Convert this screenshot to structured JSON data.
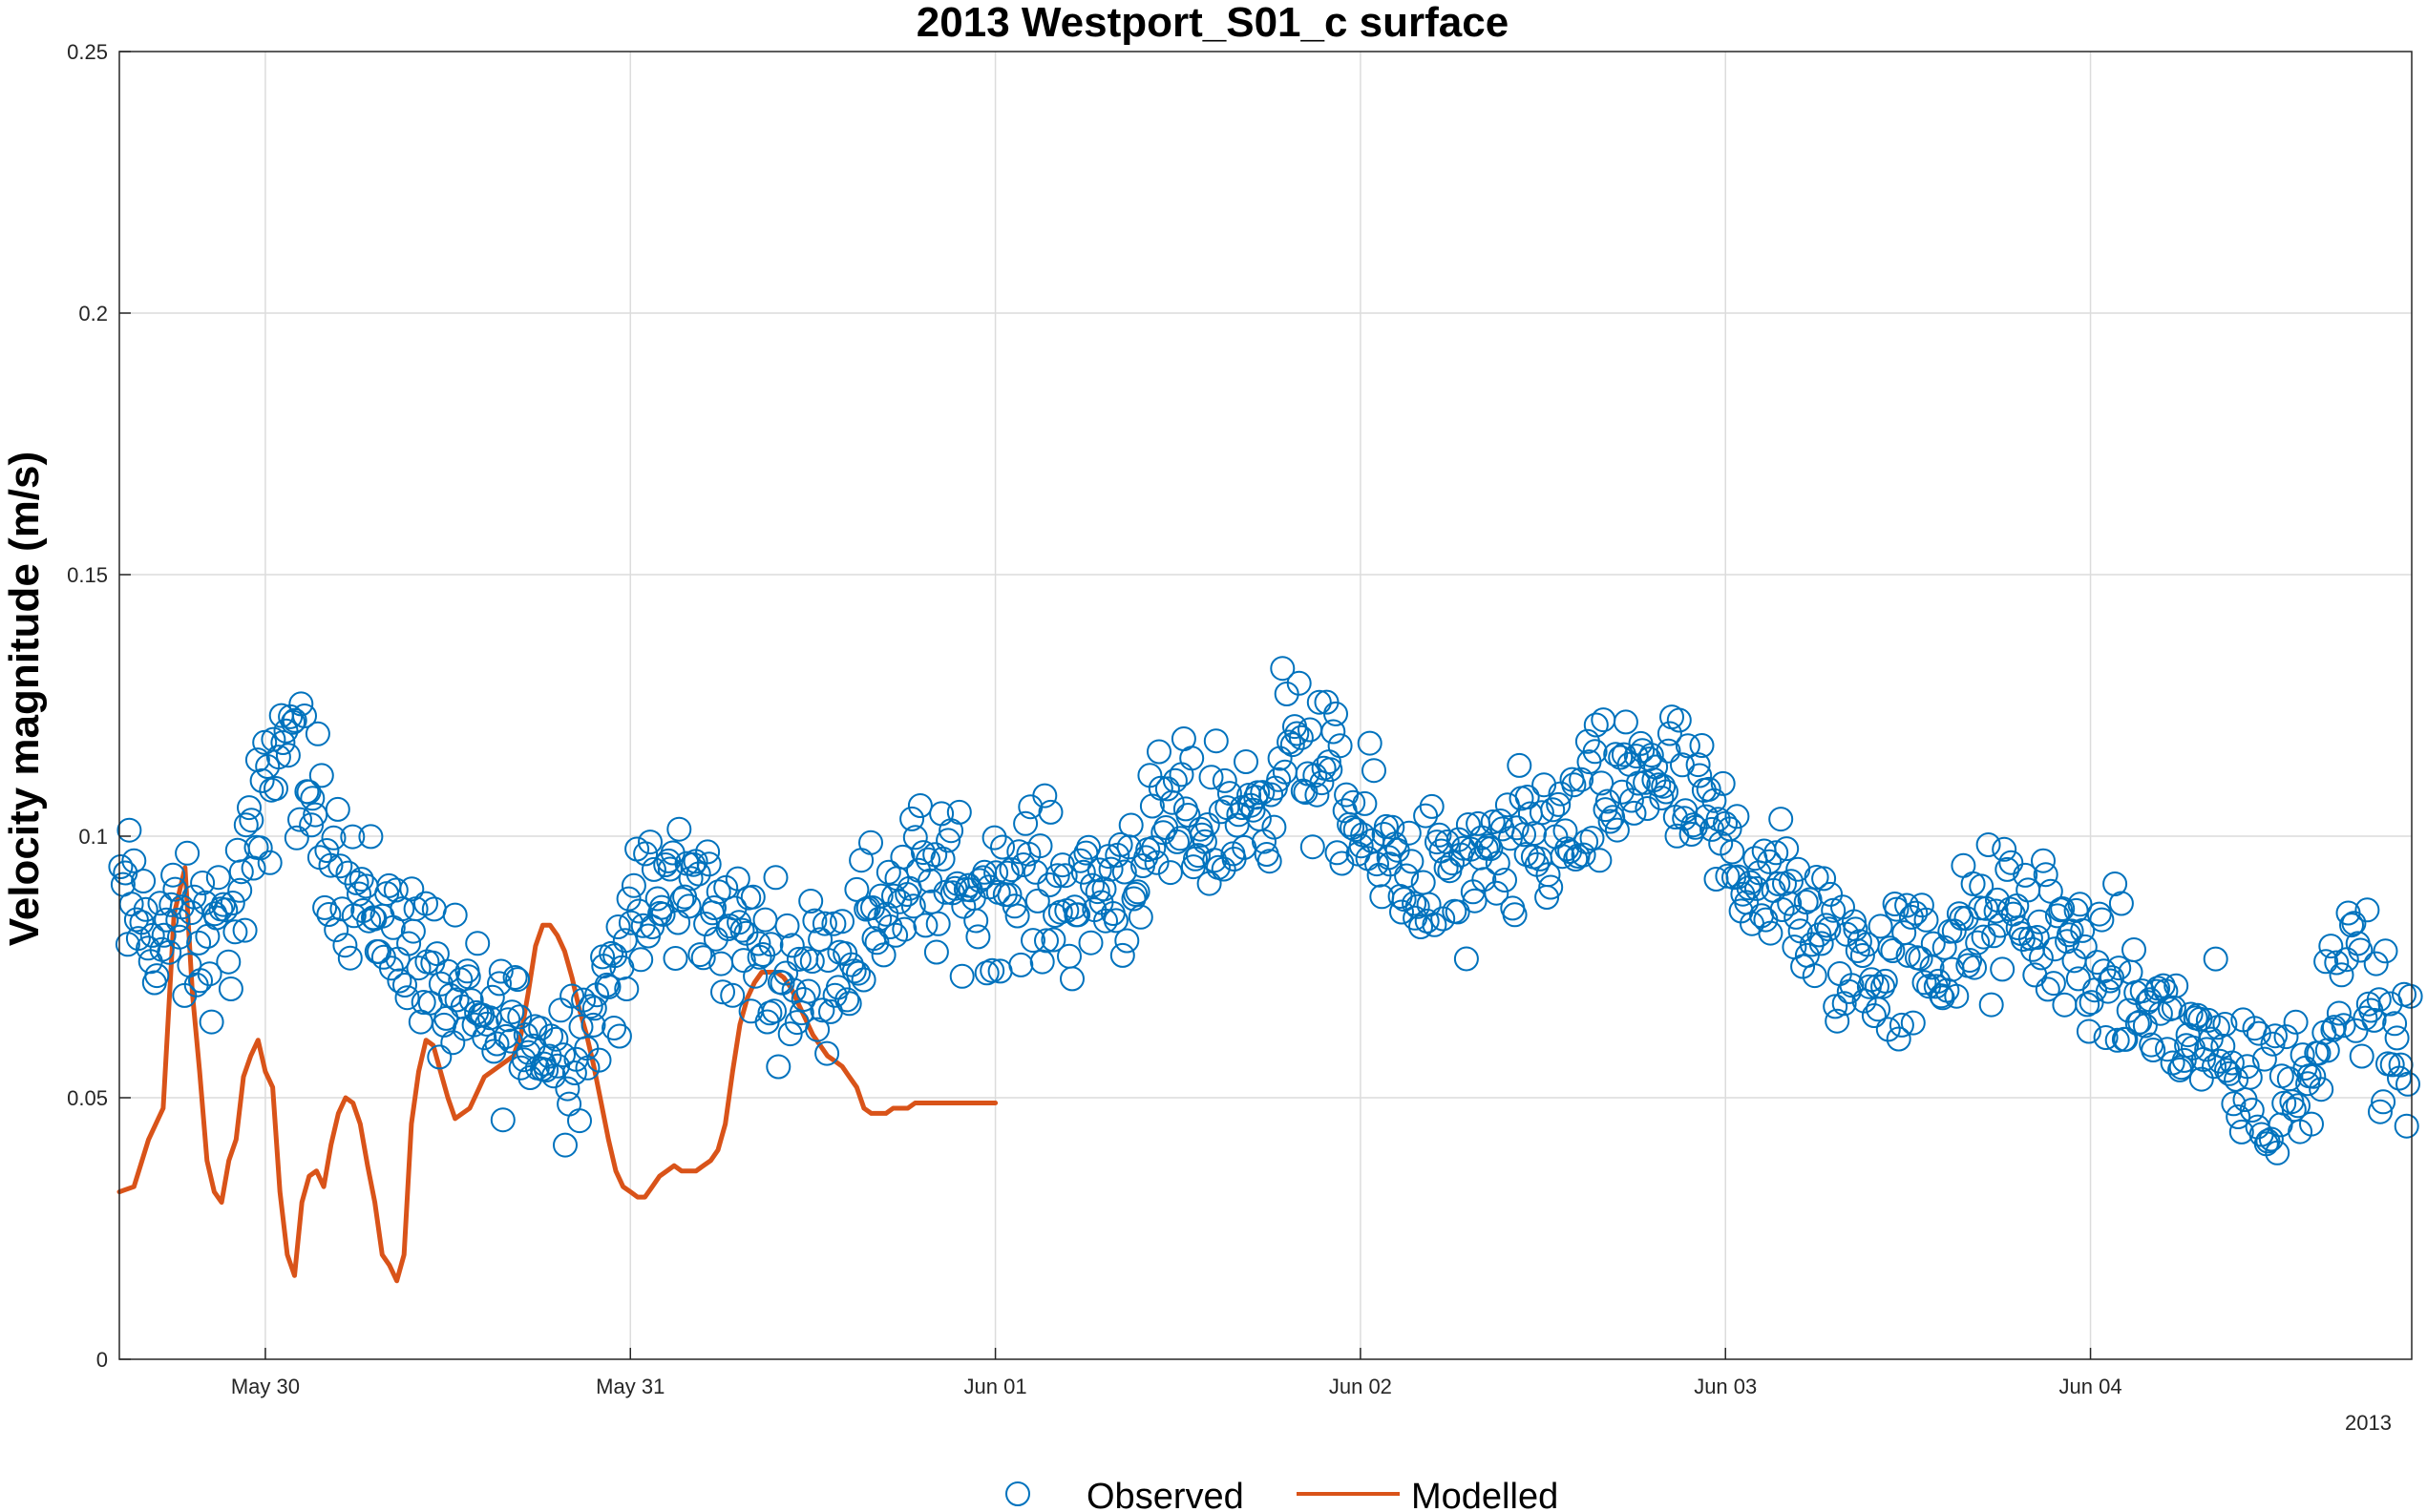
{
  "chart_data": {
    "type": "scatter",
    "title": "2013 Westport_S01_c surface",
    "xlabel": "",
    "ylabel": "Velocity magnitude (m/s)",
    "year_label": "2013",
    "x_unit": "days since May 30 2013 00:00",
    "xlim": [
      -0.4,
      5.88
    ],
    "ylim": [
      0,
      0.25
    ],
    "grid": true,
    "x_ticks": [
      {
        "value": 0,
        "label": "May 30"
      },
      {
        "value": 1,
        "label": "May 31"
      },
      {
        "value": 2,
        "label": "Jun 01"
      },
      {
        "value": 3,
        "label": "Jun 02"
      },
      {
        "value": 4,
        "label": "Jun 03"
      },
      {
        "value": 5,
        "label": "Jun 04"
      }
    ],
    "y_ticks": [
      {
        "value": 0,
        "label": "0"
      },
      {
        "value": 0.05,
        "label": "0.05"
      },
      {
        "value": 0.1,
        "label": "0.1"
      },
      {
        "value": 0.15,
        "label": "0.15"
      },
      {
        "value": 0.2,
        "label": "0.2"
      },
      {
        "value": 0.25,
        "label": "0.25"
      }
    ],
    "legend": {
      "location": "bottom-center",
      "orientation": "horizontal"
    },
    "series": [
      {
        "name": "Observed",
        "style": "markers",
        "marker": "circle",
        "color": "#0072BD",
        "trend": [
          [
            -0.4,
            0.088
          ],
          [
            -0.3,
            0.082
          ],
          [
            -0.2,
            0.08
          ],
          [
            -0.1,
            0.082
          ],
          [
            -0.02,
            0.1
          ],
          [
            0.05,
            0.122
          ],
          [
            0.12,
            0.108
          ],
          [
            0.2,
            0.095
          ],
          [
            0.3,
            0.085
          ],
          [
            0.4,
            0.08
          ],
          [
            0.5,
            0.068
          ],
          [
            0.6,
            0.064
          ],
          [
            0.7,
            0.063
          ],
          [
            0.8,
            0.058
          ],
          [
            0.9,
            0.065
          ],
          [
            1.0,
            0.082
          ],
          [
            1.1,
            0.09
          ],
          [
            1.2,
            0.088
          ],
          [
            1.3,
            0.08
          ],
          [
            1.4,
            0.075
          ],
          [
            1.5,
            0.074
          ],
          [
            1.6,
            0.08
          ],
          [
            1.7,
            0.088
          ],
          [
            1.8,
            0.092
          ],
          [
            1.9,
            0.09
          ],
          [
            2.0,
            0.09
          ],
          [
            2.1,
            0.092
          ],
          [
            2.2,
            0.088
          ],
          [
            2.3,
            0.09
          ],
          [
            2.4,
            0.096
          ],
          [
            2.5,
            0.102
          ],
          [
            2.6,
            0.103
          ],
          [
            2.7,
            0.104
          ],
          [
            2.8,
            0.118
          ],
          [
            2.9,
            0.112
          ],
          [
            3.0,
            0.1
          ],
          [
            3.1,
            0.095
          ],
          [
            3.2,
            0.092
          ],
          [
            3.3,
            0.09
          ],
          [
            3.4,
            0.095
          ],
          [
            3.5,
            0.1
          ],
          [
            3.6,
            0.102
          ],
          [
            3.7,
            0.108
          ],
          [
            3.8,
            0.115
          ],
          [
            3.9,
            0.105
          ],
          [
            4.0,
            0.098
          ],
          [
            4.1,
            0.092
          ],
          [
            4.2,
            0.085
          ],
          [
            4.3,
            0.078
          ],
          [
            4.4,
            0.075
          ],
          [
            4.5,
            0.075
          ],
          [
            4.6,
            0.078
          ],
          [
            4.7,
            0.082
          ],
          [
            4.8,
            0.085
          ],
          [
            4.9,
            0.082
          ],
          [
            5.0,
            0.075
          ],
          [
            5.1,
            0.07
          ],
          [
            5.2,
            0.065
          ],
          [
            5.3,
            0.06
          ],
          [
            5.4,
            0.055
          ],
          [
            5.5,
            0.05
          ],
          [
            5.6,
            0.055
          ],
          [
            5.7,
            0.08
          ],
          [
            5.8,
            0.062
          ],
          [
            5.88,
            0.055
          ]
        ],
        "spread": 0.013,
        "count": 1000
      },
      {
        "name": "Modelled",
        "style": "line",
        "color": "#D95319",
        "x": [
          -0.4,
          -0.36,
          -0.32,
          -0.28,
          -0.25,
          -0.22,
          -0.2,
          -0.18,
          -0.16,
          -0.14,
          -0.12,
          -0.1,
          -0.08,
          -0.06,
          -0.04,
          -0.02,
          0.0,
          0.02,
          0.04,
          0.06,
          0.08,
          0.1,
          0.12,
          0.14,
          0.16,
          0.18,
          0.2,
          0.22,
          0.24,
          0.26,
          0.28,
          0.3,
          0.32,
          0.34,
          0.36,
          0.38,
          0.4,
          0.42,
          0.44,
          0.46,
          0.48,
          0.5,
          0.52,
          0.54,
          0.56,
          0.58,
          0.6,
          0.62,
          0.64,
          0.66,
          0.68,
          0.7,
          0.72,
          0.74,
          0.76,
          0.78,
          0.8,
          0.82,
          0.84,
          0.86,
          0.88,
          0.9,
          0.92,
          0.94,
          0.96,
          0.98,
          1.0,
          1.02,
          1.04,
          1.06,
          1.08,
          1.1,
          1.12,
          1.14,
          1.16,
          1.18,
          1.2,
          1.22,
          1.24,
          1.26,
          1.28,
          1.3,
          1.32,
          1.34,
          1.36,
          1.38,
          1.4,
          1.42,
          1.44,
          1.46,
          1.48,
          1.5,
          1.52,
          1.54,
          1.56,
          1.58,
          1.6,
          1.62,
          1.64,
          1.66,
          1.68,
          1.7,
          1.72,
          1.74,
          1.76,
          1.78,
          1.8,
          1.82,
          1.84,
          1.86,
          1.88,
          1.9,
          1.92,
          1.94,
          1.96,
          1.98,
          2.0
        ],
        "values": [
          0.032,
          0.033,
          0.042,
          0.048,
          0.085,
          0.094,
          0.07,
          0.055,
          0.038,
          0.032,
          0.03,
          0.038,
          0.042,
          0.054,
          0.058,
          0.061,
          0.055,
          0.052,
          0.032,
          0.02,
          0.016,
          0.03,
          0.035,
          0.036,
          0.033,
          0.041,
          0.047,
          0.05,
          0.049,
          0.045,
          0.037,
          0.03,
          0.02,
          0.018,
          0.015,
          0.02,
          0.045,
          0.055,
          0.061,
          0.06,
          0.055,
          0.05,
          0.046,
          0.047,
          0.048,
          0.051,
          0.054,
          0.055,
          0.056,
          0.057,
          0.058,
          0.062,
          0.07,
          0.079,
          0.083,
          0.083,
          0.081,
          0.078,
          0.073,
          0.067,
          0.062,
          0.056,
          0.049,
          0.042,
          0.036,
          0.033,
          0.032,
          0.031,
          0.031,
          0.033,
          0.035,
          0.036,
          0.037,
          0.036,
          0.036,
          0.036,
          0.037,
          0.038,
          0.04,
          0.045,
          0.055,
          0.064,
          0.069,
          0.072,
          0.074,
          0.074,
          0.074,
          0.073,
          0.071,
          0.068,
          0.065,
          0.062,
          0.06,
          0.058,
          0.057,
          0.056,
          0.054,
          0.052,
          0.048,
          0.047,
          0.047,
          0.047,
          0.048,
          0.048,
          0.048,
          0.049,
          0.049,
          0.049,
          0.049,
          0.049,
          0.049,
          0.049,
          0.049,
          0.049,
          0.049,
          0.049,
          0.049
        ]
      }
    ]
  }
}
